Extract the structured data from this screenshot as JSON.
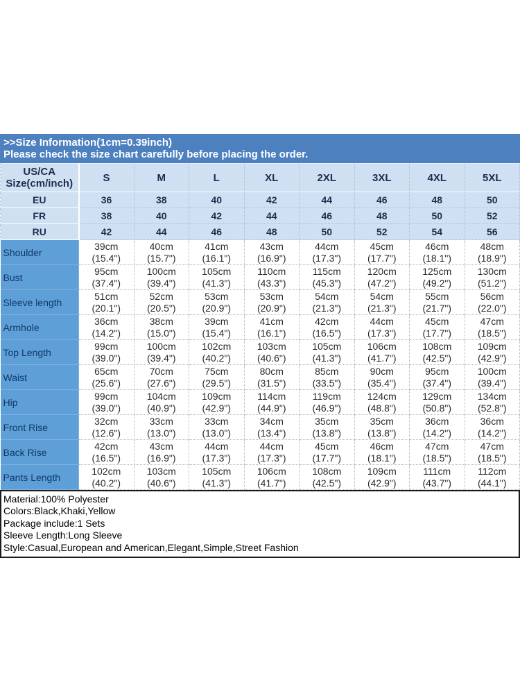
{
  "header": {
    "title": ">>Size Information(1cm=0.39inch)",
    "subtitle": "Please check the size chart carefully before placing the order."
  },
  "table": {
    "corner": [
      "US/CA",
      "Size(cm/inch)"
    ],
    "size_headers": [
      "S",
      "M",
      "L",
      "XL",
      "2XL",
      "3XL",
      "4XL",
      "5XL"
    ],
    "region_rows": [
      {
        "label": "EU",
        "values": [
          "36",
          "38",
          "40",
          "42",
          "44",
          "46",
          "48",
          "50"
        ]
      },
      {
        "label": "FR",
        "values": [
          "38",
          "40",
          "42",
          "44",
          "46",
          "48",
          "50",
          "52"
        ]
      },
      {
        "label": "RU",
        "values": [
          "42",
          "44",
          "46",
          "48",
          "50",
          "52",
          "54",
          "56"
        ]
      }
    ],
    "measurement_rows": [
      {
        "label": "Shoulder",
        "values": [
          [
            "39cm",
            "(15.4\")"
          ],
          [
            "40cm",
            "(15.7\")"
          ],
          [
            "41cm",
            "(16.1\")"
          ],
          [
            "43cm",
            "(16.9\")"
          ],
          [
            "44cm",
            "(17.3\")"
          ],
          [
            "45cm",
            "(17.7\")"
          ],
          [
            "46cm",
            "(18.1\")"
          ],
          [
            "48cm",
            "(18.9\")"
          ]
        ]
      },
      {
        "label": "Bust",
        "values": [
          [
            "95cm",
            "(37.4\")"
          ],
          [
            "100cm",
            "(39.4\")"
          ],
          [
            "105cm",
            "(41.3\")"
          ],
          [
            "110cm",
            "(43.3\")"
          ],
          [
            "115cm",
            "(45.3\")"
          ],
          [
            "120cm",
            "(47.2\")"
          ],
          [
            "125cm",
            "(49.2\")"
          ],
          [
            "130cm",
            "(51.2\")"
          ]
        ]
      },
      {
        "label": "Sleeve length",
        "values": [
          [
            "51cm",
            "(20.1\")"
          ],
          [
            "52cm",
            "(20.5\")"
          ],
          [
            "53cm",
            "(20.9\")"
          ],
          [
            "53cm",
            "(20.9\")"
          ],
          [
            "54cm",
            "(21.3\")"
          ],
          [
            "54cm",
            "(21.3\")"
          ],
          [
            "55cm",
            "(21.7\")"
          ],
          [
            "56cm",
            "(22.0\")"
          ]
        ]
      },
      {
        "label": "Armhole",
        "values": [
          [
            "36cm",
            "(14.2\")"
          ],
          [
            "38cm",
            "(15.0\")"
          ],
          [
            "39cm",
            "(15.4\")"
          ],
          [
            "41cm",
            "(16.1\")"
          ],
          [
            "42cm",
            "(16.5\")"
          ],
          [
            "44cm",
            "(17.3\")"
          ],
          [
            "45cm",
            "(17.7\")"
          ],
          [
            "47cm",
            "(18.5\")"
          ]
        ]
      },
      {
        "label": "Top Length",
        "values": [
          [
            "99cm",
            "(39.0\")"
          ],
          [
            "100cm",
            "(39.4\")"
          ],
          [
            "102cm",
            "(40.2\")"
          ],
          [
            "103cm",
            "(40.6\")"
          ],
          [
            "105cm",
            "(41.3\")"
          ],
          [
            "106cm",
            "(41.7\")"
          ],
          [
            "108cm",
            "(42.5\")"
          ],
          [
            "109cm",
            "(42.9\")"
          ]
        ]
      },
      {
        "label": "Waist",
        "values": [
          [
            "65cm",
            "(25.6\")"
          ],
          [
            "70cm",
            "(27.6\")"
          ],
          [
            "75cm",
            "(29.5\")"
          ],
          [
            "80cm",
            "(31.5\")"
          ],
          [
            "85cm",
            "(33.5\")"
          ],
          [
            "90cm",
            "(35.4\")"
          ],
          [
            "95cm",
            "(37.4\")"
          ],
          [
            "100cm",
            "(39.4\")"
          ]
        ]
      },
      {
        "label": "Hip",
        "values": [
          [
            "99cm",
            "(39.0\")"
          ],
          [
            "104cm",
            "(40.9\")"
          ],
          [
            "109cm",
            "(42.9\")"
          ],
          [
            "114cm",
            "(44.9\")"
          ],
          [
            "119cm",
            "(46.9\")"
          ],
          [
            "124cm",
            "(48.8\")"
          ],
          [
            "129cm",
            "(50.8\")"
          ],
          [
            "134cm",
            "(52.8\")"
          ]
        ]
      },
      {
        "label": "Front Rise",
        "values": [
          [
            "32cm",
            "(12.6\")"
          ],
          [
            "33cm",
            "(13.0\")"
          ],
          [
            "33cm",
            "(13.0\")"
          ],
          [
            "34cm",
            "(13.4\")"
          ],
          [
            "35cm",
            "(13.8\")"
          ],
          [
            "35cm",
            "(13.8\")"
          ],
          [
            "36cm",
            "(14.2\")"
          ],
          [
            "36cm",
            "(14.2\")"
          ]
        ]
      },
      {
        "label": "Back Rise",
        "values": [
          [
            "42cm",
            "(16.5\")"
          ],
          [
            "43cm",
            "(16.9\")"
          ],
          [
            "44cm",
            "(17.3\")"
          ],
          [
            "44cm",
            "(17.3\")"
          ],
          [
            "45cm",
            "(17.7\")"
          ],
          [
            "46cm",
            "(18.1\")"
          ],
          [
            "47cm",
            "(18.5\")"
          ],
          [
            "47cm",
            "(18.5\")"
          ]
        ]
      },
      {
        "label": "Pants Length",
        "values": [
          [
            "102cm",
            "(40.2\")"
          ],
          [
            "103cm",
            "(40.6\")"
          ],
          [
            "105cm",
            "(41.3\")"
          ],
          [
            "106cm",
            "(41.7\")"
          ],
          [
            "108cm",
            "(42.5\")"
          ],
          [
            "109cm",
            "(42.9\")"
          ],
          [
            "111cm",
            "(43.7\")"
          ],
          [
            "112cm",
            "(44.1\")"
          ]
        ]
      }
    ]
  },
  "product_info": {
    "lines": [
      "Material:100% Polyester",
      "Colors:Black,Khaki,Yellow",
      "Package include:1 Sets",
      "Sleeve Length:Long Sleeve",
      "Style:Casual,European and American,Elegant,Simple,Street Fashion"
    ]
  },
  "colors": {
    "band_bg": "#4d80bf",
    "header_row_bg": "#cfe0f2",
    "label_col_bg": "#5f9fd8",
    "header_text": "#1f2d4d",
    "label_text": "#0d3a66"
  }
}
